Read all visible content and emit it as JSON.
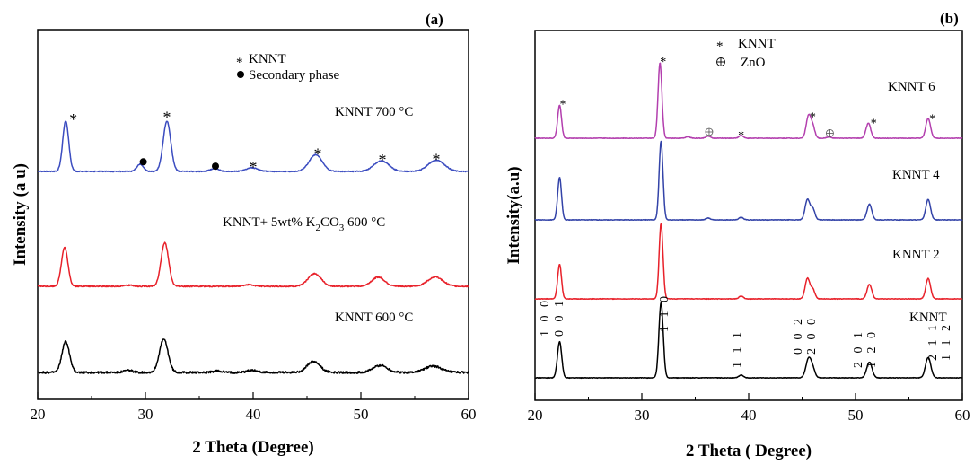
{
  "chart_data": [
    {
      "type": "line",
      "panel_label": "(a)",
      "xlabel": "2 Theta (Degree)",
      "ylabel": "Intensity (a u)",
      "xlim": [
        20,
        60
      ],
      "xticks": [
        "20",
        "30",
        "40",
        "50",
        "60"
      ],
      "legend": [
        {
          "marker": "star",
          "label": "KNNT"
        },
        {
          "marker": "dot",
          "label": "Secondary phase"
        }
      ],
      "series": [
        {
          "name": "KNNT  700 °C",
          "color": "#3b4cc0",
          "baseline": 0.0,
          "noise": 0.2,
          "peaks": [
            [
              22.6,
              22,
              0.28
            ],
            [
              29.5,
              3.2,
              0.3
            ],
            [
              32.0,
              22,
              0.35
            ],
            [
              36.4,
              1.2,
              0.4
            ],
            [
              39.9,
              1.6,
              0.55
            ],
            [
              45.8,
              7.3,
              0.6
            ],
            [
              51.9,
              4.6,
              0.7
            ],
            [
              57.0,
              4.9,
              0.75
            ]
          ],
          "markers": [
            {
              "x": 23.3,
              "y": 23.5,
              "type": "star"
            },
            {
              "x": 29.8,
              "y": 4.2,
              "type": "dot"
            },
            {
              "x": 32.0,
              "y": 24.5,
              "type": "star"
            },
            {
              "x": 36.5,
              "y": 2.3,
              "type": "dot"
            },
            {
              "x": 40.0,
              "y": 2.8,
              "type": "star"
            },
            {
              "x": 46.0,
              "y": 8.4,
              "type": "star"
            },
            {
              "x": 52.0,
              "y": 5.8,
              "type": "star"
            },
            {
              "x": 57.0,
              "y": 6.1,
              "type": "star"
            }
          ]
        },
        {
          "name": "KNNT+ 5wt% K2CO3 600 °C",
          "color": "#e8212a",
          "baseline": 0.0,
          "noise": 0.25,
          "peaks": [
            [
              22.5,
              17,
              0.3
            ],
            [
              28.4,
              0.5,
              0.4
            ],
            [
              31.8,
              19,
              0.35
            ],
            [
              39.6,
              0.7,
              0.5
            ],
            [
              45.7,
              5.6,
              0.6
            ],
            [
              51.6,
              4.0,
              0.6
            ],
            [
              56.9,
              4.1,
              0.7
            ]
          ],
          "markers": []
        },
        {
          "name": "KNNT  600 °C",
          "color": "#000000",
          "baseline": 0.0,
          "noise": 0.45,
          "peaks": [
            [
              22.6,
              13.5,
              0.35
            ],
            [
              28.4,
              0.9,
              0.4
            ],
            [
              31.7,
              14.5,
              0.4
            ],
            [
              36.7,
              0.7,
              0.4
            ],
            [
              39.9,
              0.9,
              0.5
            ],
            [
              45.6,
              4.7,
              0.6
            ],
            [
              51.8,
              3.1,
              0.65
            ],
            [
              56.7,
              2.8,
              0.75
            ]
          ],
          "markers": []
        }
      ]
    },
    {
      "type": "line",
      "panel_label": "(b)",
      "xlabel": "2 Theta ( Degree)",
      "ylabel": "Intensity(a.u)",
      "xlim": [
        20,
        60
      ],
      "xticks": [
        "20",
        "30",
        "40",
        "50",
        "60"
      ],
      "legend": [
        {
          "marker": "star",
          "label": "KNNT"
        },
        {
          "marker": "circle-plus",
          "label": "ZnO"
        }
      ],
      "series": [
        {
          "name": "KNNT 6",
          "color": "#b33fae",
          "baseline": 0.0,
          "noise": 0.08,
          "peaks": [
            [
              22.3,
              10.5,
              0.18
            ],
            [
              31.7,
              24,
              0.18
            ],
            [
              34.3,
              0.5,
              0.2
            ],
            [
              36.2,
              0.7,
              0.2
            ],
            [
              39.3,
              0.9,
              0.2
            ],
            [
              45.6,
              7.0,
              0.22
            ],
            [
              46.0,
              3.5,
              0.2
            ],
            [
              47.5,
              0.4,
              0.2
            ],
            [
              51.2,
              4.8,
              0.22
            ],
            [
              56.8,
              6.3,
              0.22
            ]
          ],
          "markers": [
            {
              "x": 22.6,
              "y": 11.8,
              "type": "star"
            },
            {
              "x": 32.0,
              "y": 25.5,
              "type": "star"
            },
            {
              "x": 36.3,
              "y": 2.0,
              "type": "circle-plus"
            },
            {
              "x": 39.3,
              "y": 2.0,
              "type": "star"
            },
            {
              "x": 46.0,
              "y": 7.9,
              "type": "star"
            },
            {
              "x": 47.6,
              "y": 1.6,
              "type": "circle-plus"
            },
            {
              "x": 51.7,
              "y": 5.8,
              "type": "star"
            },
            {
              "x": 57.2,
              "y": 7.3,
              "type": "star"
            }
          ]
        },
        {
          "name": "KNNT 4",
          "color": "#3343a8",
          "baseline": 0.0,
          "noise": 0.08,
          "peaks": [
            [
              22.3,
              13.5,
              0.18
            ],
            [
              31.8,
              25,
              0.18
            ],
            [
              36.2,
              0.6,
              0.2
            ],
            [
              39.3,
              0.8,
              0.2
            ],
            [
              45.5,
              6.5,
              0.22
            ],
            [
              46.0,
              3.5,
              0.2
            ],
            [
              51.3,
              5.0,
              0.22
            ],
            [
              56.8,
              6.5,
              0.22
            ]
          ],
          "markers": []
        },
        {
          "name": "KNNT 2",
          "color": "#e8212a",
          "baseline": 0.0,
          "noise": 0.08,
          "peaks": [
            [
              22.3,
              11,
              0.18
            ],
            [
              31.8,
              24,
              0.18
            ],
            [
              39.3,
              0.9,
              0.2
            ],
            [
              45.5,
              6.5,
              0.22
            ],
            [
              46.0,
              3.0,
              0.2
            ],
            [
              51.3,
              4.6,
              0.22
            ],
            [
              56.8,
              6.5,
              0.22
            ]
          ],
          "markers": []
        },
        {
          "name": "KNNT",
          "color": "#000000",
          "baseline": 0.0,
          "noise": 0.08,
          "peaks": [
            [
              22.3,
              11.5,
              0.2
            ],
            [
              31.8,
              24,
              0.2
            ],
            [
              39.3,
              0.9,
              0.22
            ],
            [
              45.6,
              6.0,
              0.25
            ],
            [
              46.0,
              2.5,
              0.22
            ],
            [
              51.3,
              5.0,
              0.25
            ],
            [
              56.8,
              6.5,
              0.25
            ]
          ],
          "markers": []
        }
      ],
      "hkl_labels": [
        {
          "line1": "1 0 0",
          "line2": "0 0 1"
        },
        {
          "line1": "1 1 0",
          "line2": ""
        },
        {
          "line1": "1 1 1",
          "line2": ""
        },
        {
          "line1": "0 0 2",
          "line2": "2 0 0"
        },
        {
          "line1": "2 0 1",
          "line2": "1 2 0"
        },
        {
          "line1": "2 1 1",
          "line2": "1 1 2"
        }
      ]
    }
  ]
}
